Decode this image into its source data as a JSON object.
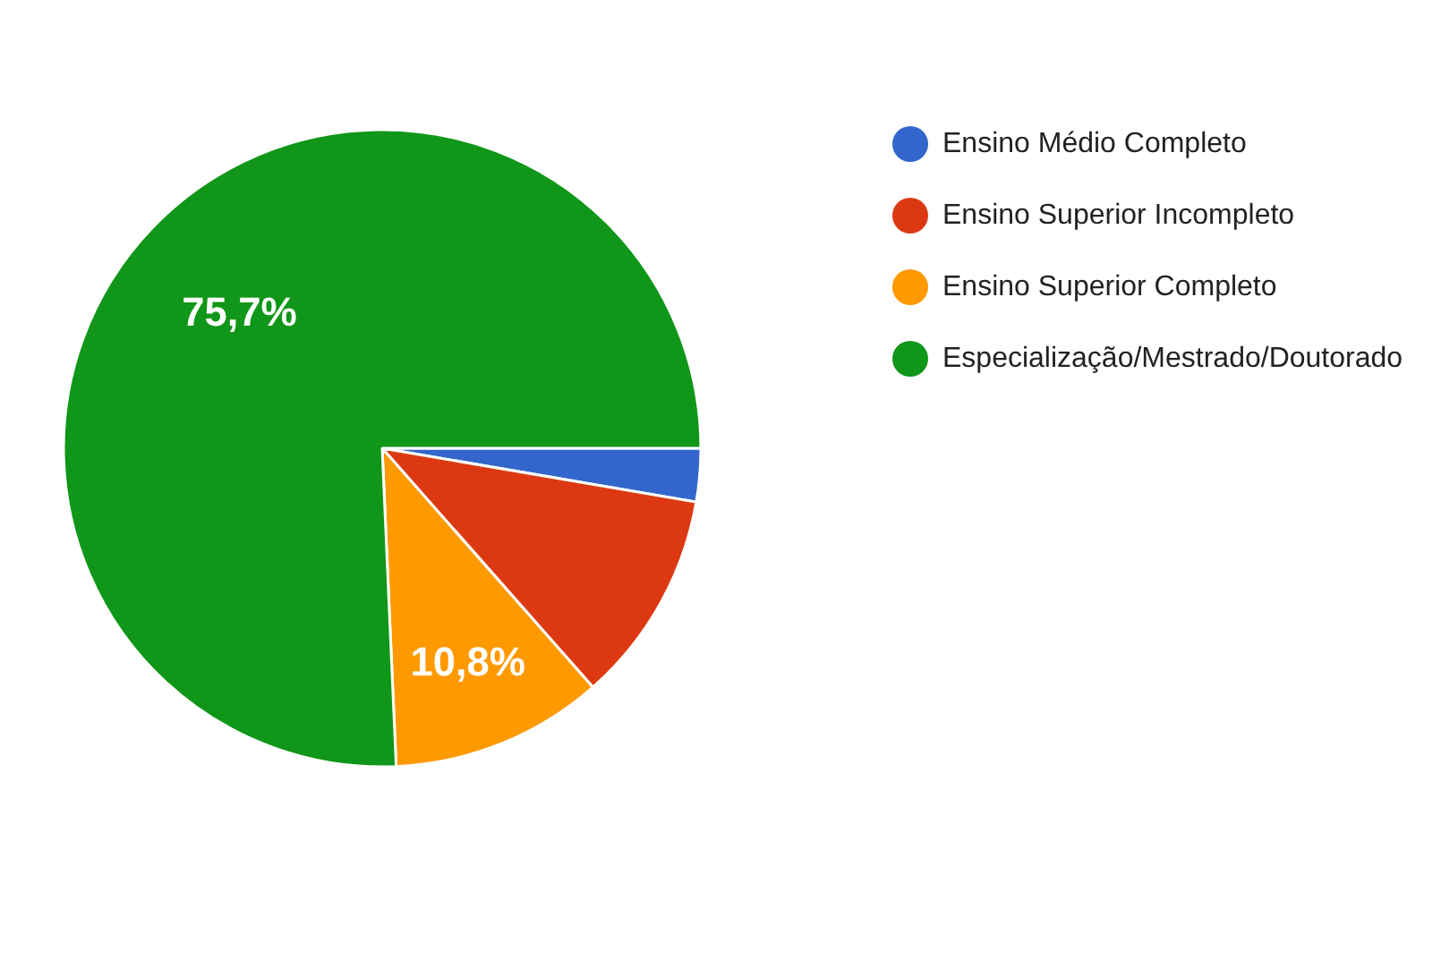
{
  "chart_data": {
    "type": "pie",
    "categories": [
      "Ensino Médio Completo",
      "Ensino Superior Incompleto",
      "Ensino Superior Completo",
      "Especialização/Mestrado/Doutorado"
    ],
    "values": [
      2.7,
      10.8,
      10.8,
      75.7
    ],
    "colors": [
      "#3366cc",
      "#dc3912",
      "#ff9900",
      "#109618"
    ],
    "value_labels": [
      null,
      null,
      "10,8%",
      "75,7%"
    ],
    "legend": "top right"
  }
}
